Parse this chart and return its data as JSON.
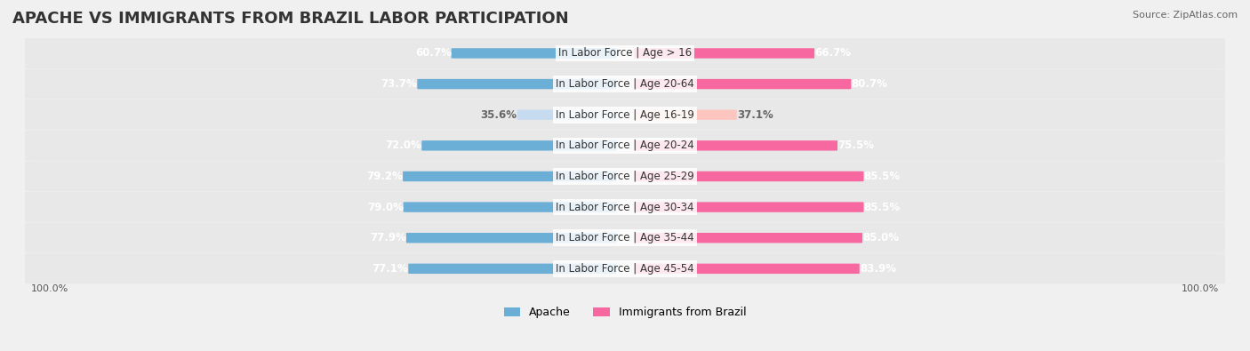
{
  "title": "APACHE VS IMMIGRANTS FROM BRAZIL LABOR PARTICIPATION",
  "source": "Source: ZipAtlas.com",
  "categories": [
    "In Labor Force | Age > 16",
    "In Labor Force | Age 20-64",
    "In Labor Force | Age 16-19",
    "In Labor Force | Age 20-24",
    "In Labor Force | Age 25-29",
    "In Labor Force | Age 30-34",
    "In Labor Force | Age 35-44",
    "In Labor Force | Age 45-54"
  ],
  "apache_values": [
    60.7,
    73.7,
    35.6,
    72.0,
    79.2,
    79.0,
    77.9,
    77.1
  ],
  "brazil_values": [
    66.7,
    80.7,
    37.1,
    75.5,
    85.5,
    85.5,
    85.0,
    83.9
  ],
  "apache_color": "#6baed6",
  "apache_color_light": "#c6dbef",
  "brazil_color": "#f768a1",
  "brazil_color_light": "#fcc5c0",
  "background_color": "#f0f0f0",
  "bar_bg_color": "#ffffff",
  "row_bg_color": "#e8e8e8",
  "max_value": 100.0,
  "title_fontsize": 13,
  "label_fontsize": 8.5,
  "value_fontsize": 8.5,
  "legend_fontsize": 9
}
